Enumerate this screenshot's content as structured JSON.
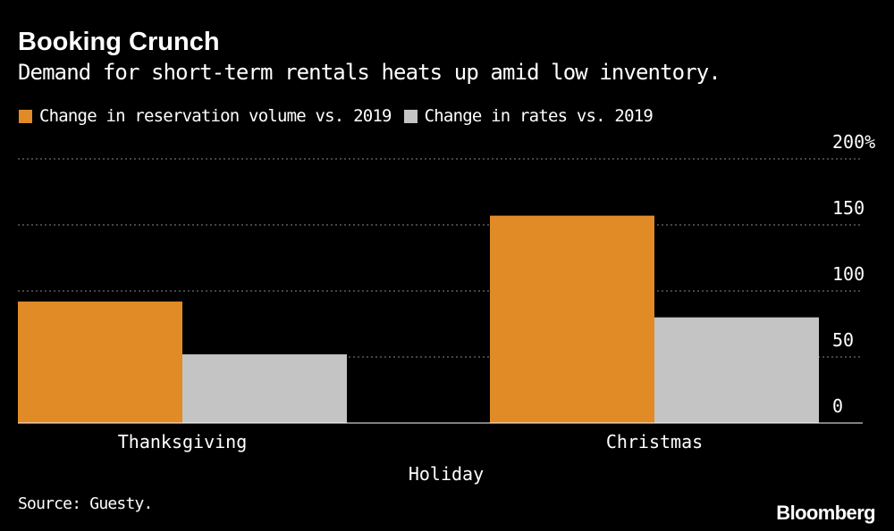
{
  "header": {
    "title": "Booking Crunch",
    "subtitle": "Demand for short-term rentals heats up amid low inventory."
  },
  "legend": {
    "items": [
      {
        "label": "Change in reservation volume vs. 2019",
        "color": "#e08b26"
      },
      {
        "label": "Change in rates vs. 2019",
        "color": "#c4c4c4"
      }
    ]
  },
  "footer": {
    "source": "Source: Guesty.",
    "logo_text": "Bloomberg"
  },
  "chart_data": {
    "type": "bar",
    "title": "Booking Crunch",
    "subtitle": "Demand for short-term rentals heats up amid low inventory.",
    "xlabel": "Holiday",
    "ylabel": "",
    "categories": [
      "Thanksgiving",
      "Christmas"
    ],
    "series": [
      {
        "name": "Change in reservation volume vs. 2019",
        "values": [
          92,
          157
        ],
        "color": "#e08b26"
      },
      {
        "name": "Change in rates vs. 2019",
        "values": [
          52,
          80
        ],
        "color": "#c4c4c4"
      }
    ],
    "ylim": [
      0,
      200
    ],
    "yticks": [
      0,
      50,
      100,
      150,
      200
    ],
    "ytick_labels": [
      "0",
      "50",
      "100",
      "150",
      "200%"
    ],
    "y_axis_side": "right",
    "grid": true,
    "legend_position": "top-left"
  }
}
